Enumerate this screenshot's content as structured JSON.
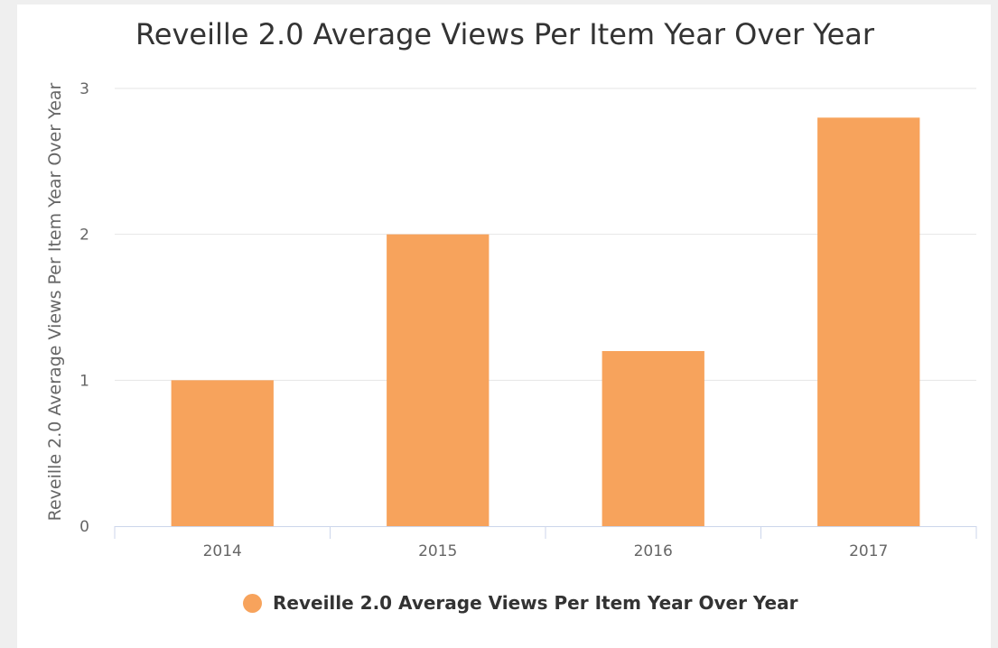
{
  "chart_data": {
    "type": "bar",
    "title": "Reveille 2.0 Average Views Per Item Year Over Year",
    "xlabel": "",
    "ylabel": "Reveille 2.0 Average Views Per Item Year Over Year",
    "categories": [
      "2014",
      "2015",
      "2016",
      "2017"
    ],
    "series": [
      {
        "name": "Reveille 2.0 Average Views Per Item Year Over Year",
        "values": [
          1.0,
          2.0,
          1.2,
          2.8
        ],
        "color": "#f7a35c"
      }
    ],
    "ylim": [
      0,
      3
    ],
    "yticks": [
      "0",
      "1",
      "2",
      "3"
    ],
    "grid": true,
    "legend": "bottom-center"
  }
}
